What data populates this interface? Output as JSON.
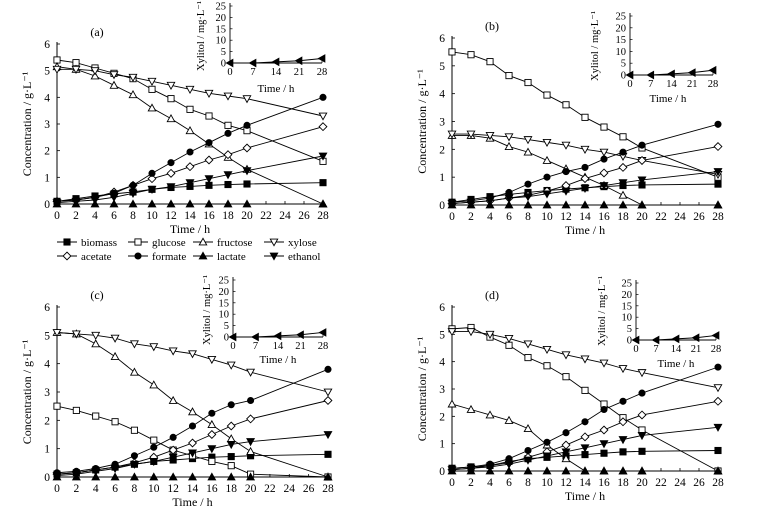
{
  "x_label": "Time / h",
  "y_label": "Concentration / g·L⁻¹",
  "inset_y_label": "Xylitol / mg·L⁻¹",
  "inset_x_label": "Time / h",
  "x_ticks": [
    "0",
    "2",
    "4",
    "6",
    "8",
    "10",
    "12",
    "14",
    "16",
    "18",
    "20",
    "22",
    "24",
    "26",
    "28"
  ],
  "y_ticks": [
    "0",
    "1",
    "2",
    "3",
    "4",
    "5",
    "6"
  ],
  "inset_x_ticks": [
    "0",
    "7",
    "14",
    "21",
    "28"
  ],
  "inset_y_ticks": [
    "0",
    "5",
    "10",
    "15",
    "20",
    "25"
  ],
  "legend": [
    {
      "key": "biomass",
      "label": "biomass",
      "marker": "square-filled"
    },
    {
      "key": "glucose",
      "label": "glucose",
      "marker": "square-open"
    },
    {
      "key": "fructose",
      "label": "fructose",
      "marker": "triangle-open"
    },
    {
      "key": "xylose",
      "label": "xylose",
      "marker": "triangle-down-open"
    },
    {
      "key": "acetate",
      "label": "acetate",
      "marker": "diamond-open"
    },
    {
      "key": "formate",
      "label": "formate",
      "marker": "circle-filled"
    },
    {
      "key": "lactate",
      "label": "lactate",
      "marker": "triangle-filled"
    },
    {
      "key": "ethanol",
      "label": "ethanol",
      "marker": "triangle-down-filled"
    }
  ],
  "chart_data": [
    {
      "type": "line",
      "panel_label": "(a)",
      "x": [
        0,
        2,
        4,
        6,
        8,
        10,
        12,
        14,
        16,
        18,
        20,
        28
      ],
      "xlim": [
        0,
        28
      ],
      "ylim": [
        0,
        6
      ],
      "series": [
        {
          "key": "biomass",
          "values": [
            0.1,
            0.2,
            0.3,
            0.38,
            0.45,
            0.55,
            0.62,
            0.66,
            0.7,
            0.73,
            0.75,
            0.8
          ]
        },
        {
          "key": "glucose",
          "values": [
            5.4,
            5.3,
            5.1,
            4.9,
            4.7,
            4.3,
            3.95,
            3.55,
            3.3,
            2.95,
            2.75,
            1.6
          ]
        },
        {
          "key": "fructose",
          "values": [
            5.15,
            5.05,
            4.8,
            4.45,
            4.1,
            3.6,
            3.2,
            2.75,
            2.25,
            1.75,
            1.3,
            0.0
          ]
        },
        {
          "key": "xylose",
          "values": [
            5.05,
            5.05,
            5.0,
            4.85,
            4.75,
            4.6,
            4.45,
            4.3,
            4.15,
            4.05,
            3.95,
            3.3
          ]
        },
        {
          "key": "acetate",
          "values": [
            0.1,
            0.15,
            0.25,
            0.45,
            0.7,
            0.95,
            1.15,
            1.4,
            1.65,
            1.85,
            2.1,
            2.9
          ]
        },
        {
          "key": "formate",
          "values": [
            0.1,
            0.15,
            0.25,
            0.4,
            0.7,
            1.15,
            1.55,
            1.95,
            2.3,
            2.65,
            2.95,
            4.0
          ]
        },
        {
          "key": "lactate",
          "values": [
            0.0,
            0.0,
            0.0,
            0.0,
            0.0,
            0.0,
            0.0,
            0.0,
            0.0,
            0.0,
            0.0,
            0.0
          ]
        },
        {
          "key": "ethanol",
          "values": [
            0.05,
            0.1,
            0.15,
            0.25,
            0.4,
            0.55,
            0.65,
            0.8,
            0.95,
            1.1,
            1.25,
            1.8
          ]
        }
      ],
      "inset": {
        "x": [
          0,
          7,
          14,
          21,
          28
        ],
        "values": [
          0,
          0,
          0.5,
          1,
          2
        ]
      }
    },
    {
      "type": "line",
      "panel_label": "(b)",
      "x": [
        0,
        2,
        4,
        6,
        8,
        10,
        12,
        14,
        16,
        18,
        20,
        28
      ],
      "xlim": [
        0,
        28
      ],
      "ylim": [
        0,
        6
      ],
      "series": [
        {
          "key": "biomass",
          "values": [
            0.1,
            0.2,
            0.3,
            0.38,
            0.45,
            0.52,
            0.57,
            0.62,
            0.66,
            0.7,
            0.72,
            0.75
          ]
        },
        {
          "key": "glucose",
          "values": [
            5.5,
            5.4,
            5.15,
            4.65,
            4.4,
            3.95,
            3.6,
            3.15,
            2.8,
            2.45,
            2.05,
            1.0
          ]
        },
        {
          "key": "fructose",
          "values": [
            2.5,
            2.5,
            2.4,
            2.1,
            1.9,
            1.6,
            1.3,
            1.0,
            0.7,
            0.35,
            0.0,
            0.0
          ]
        },
        {
          "key": "xylose",
          "values": [
            2.55,
            2.55,
            2.5,
            2.45,
            2.35,
            2.25,
            2.15,
            2.0,
            1.9,
            1.75,
            1.6,
            1.1
          ]
        },
        {
          "key": "acetate",
          "values": [
            0.05,
            0.1,
            0.15,
            0.25,
            0.35,
            0.5,
            0.7,
            0.95,
            1.15,
            1.35,
            1.6,
            2.1
          ]
        },
        {
          "key": "formate",
          "values": [
            0.1,
            0.15,
            0.25,
            0.45,
            0.75,
            1.0,
            1.2,
            1.35,
            1.65,
            1.9,
            2.15,
            2.9
          ]
        },
        {
          "key": "lactate",
          "values": [
            0.0,
            0.0,
            0.0,
            0.0,
            0.0,
            0.0,
            0.0,
            0.0,
            0.0,
            0.0,
            0.0,
            0.0
          ]
        },
        {
          "key": "ethanol",
          "values": [
            0.05,
            0.1,
            0.15,
            0.25,
            0.3,
            0.4,
            0.5,
            0.6,
            0.7,
            0.8,
            0.9,
            1.2
          ]
        }
      ],
      "inset": {
        "x": [
          0,
          7,
          14,
          21,
          28
        ],
        "values": [
          0,
          0,
          0.5,
          1,
          2
        ]
      }
    },
    {
      "type": "line",
      "panel_label": "(c)",
      "x": [
        0,
        2,
        4,
        6,
        8,
        10,
        12,
        14,
        16,
        18,
        20,
        28
      ],
      "xlim": [
        0,
        28
      ],
      "ylim": [
        0,
        6
      ],
      "series": [
        {
          "key": "biomass",
          "values": [
            0.1,
            0.15,
            0.25,
            0.35,
            0.45,
            0.55,
            0.6,
            0.65,
            0.7,
            0.72,
            0.75,
            0.8
          ]
        },
        {
          "key": "glucose",
          "values": [
            2.5,
            2.35,
            2.15,
            1.95,
            1.65,
            1.3,
            0.95,
            0.75,
            0.55,
            0.4,
            0.1,
            0.0
          ]
        },
        {
          "key": "fructose",
          "values": [
            5.1,
            5.05,
            4.7,
            4.25,
            3.7,
            3.25,
            2.7,
            2.3,
            1.85,
            1.35,
            0.9,
            0.0
          ]
        },
        {
          "key": "xylose",
          "values": [
            5.1,
            5.05,
            5.0,
            4.9,
            4.7,
            4.6,
            4.45,
            4.35,
            4.15,
            3.95,
            3.7,
            3.0
          ]
        },
        {
          "key": "acetate",
          "values": [
            0.1,
            0.15,
            0.25,
            0.35,
            0.5,
            0.7,
            0.95,
            1.2,
            1.5,
            1.8,
            2.05,
            2.7
          ]
        },
        {
          "key": "formate",
          "values": [
            0.15,
            0.2,
            0.3,
            0.45,
            0.75,
            1.05,
            1.4,
            1.8,
            2.25,
            2.55,
            2.7,
            3.8
          ]
        },
        {
          "key": "lactate",
          "values": [
            0.0,
            0.0,
            0.0,
            0.0,
            0.0,
            0.0,
            0.0,
            0.0,
            0.0,
            0.0,
            0.0,
            0.0
          ]
        },
        {
          "key": "ethanol",
          "values": [
            0.05,
            0.1,
            0.2,
            0.3,
            0.45,
            0.55,
            0.7,
            0.85,
            1.0,
            1.15,
            1.25,
            1.5
          ]
        }
      ],
      "inset": {
        "x": [
          0,
          7,
          14,
          21,
          28
        ],
        "values": [
          0,
          0,
          0.5,
          1,
          2
        ]
      }
    },
    {
      "type": "line",
      "panel_label": "(d)",
      "x": [
        0,
        2,
        4,
        6,
        8,
        10,
        12,
        14,
        16,
        18,
        20,
        28
      ],
      "xlim": [
        0,
        28
      ],
      "ylim": [
        0,
        6
      ],
      "series": [
        {
          "key": "biomass",
          "values": [
            0.1,
            0.15,
            0.2,
            0.35,
            0.45,
            0.5,
            0.55,
            0.6,
            0.65,
            0.7,
            0.72,
            0.75
          ]
        },
        {
          "key": "glucose",
          "values": [
            5.2,
            5.25,
            4.9,
            4.6,
            4.15,
            3.85,
            3.45,
            2.95,
            2.45,
            1.95,
            1.5,
            0.0
          ]
        },
        {
          "key": "fructose",
          "values": [
            2.45,
            2.25,
            2.05,
            1.85,
            1.55,
            0.95,
            0.45,
            0.0,
            0.0,
            0.0,
            0.0,
            0.0
          ]
        },
        {
          "key": "xylose",
          "values": [
            5.1,
            5.1,
            5.0,
            4.85,
            4.65,
            4.45,
            4.25,
            4.1,
            3.95,
            3.75,
            3.6,
            3.05
          ]
        },
        {
          "key": "acetate",
          "values": [
            0.05,
            0.1,
            0.2,
            0.3,
            0.5,
            0.7,
            0.95,
            1.25,
            1.5,
            1.8,
            2.05,
            2.55
          ]
        },
        {
          "key": "formate",
          "values": [
            0.1,
            0.15,
            0.25,
            0.45,
            0.75,
            1.05,
            1.4,
            1.8,
            2.25,
            2.55,
            2.85,
            3.8
          ]
        },
        {
          "key": "lactate",
          "values": [
            0.0,
            0.0,
            0.0,
            0.0,
            0.0,
            0.0,
            0.0,
            0.0,
            0.0,
            0.0,
            0.0,
            0.0
          ]
        },
        {
          "key": "ethanol",
          "values": [
            0.05,
            0.1,
            0.15,
            0.25,
            0.4,
            0.55,
            0.7,
            0.85,
            1.0,
            1.15,
            1.3,
            1.6
          ]
        }
      ],
      "inset": {
        "x": [
          0,
          7,
          14,
          21,
          28
        ],
        "values": [
          0,
          0,
          0.5,
          1,
          2
        ]
      }
    }
  ]
}
